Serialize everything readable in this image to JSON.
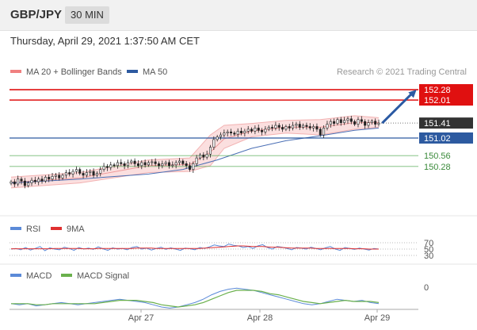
{
  "header": {
    "pair": "GBP/JPY",
    "timeframe": "30 MIN",
    "datetime": "Thursday, April 29, 2021 1:37:50 AM CET"
  },
  "credit": "Research © 2021 Trading Central",
  "chart_data": [
    {
      "type": "candlestick",
      "legend": [
        {
          "name": "MA 20 + Bollinger Bands",
          "color": "#f08080"
        },
        {
          "name": "MA 50",
          "color": "#2d5aa0"
        }
      ],
      "ylim": [
        149.2,
        152.55
      ],
      "x_ticks": [
        "Apr 27",
        "Apr 28",
        "Apr 29"
      ],
      "levels": [
        {
          "value": 152.28,
          "label": "152.28",
          "style": "resistance"
        },
        {
          "value": 152.01,
          "label": "152.01",
          "style": "resistance"
        },
        {
          "value": 151.41,
          "label": "151.41",
          "style": "last"
        },
        {
          "value": 151.02,
          "label": "151.02",
          "style": "pivot"
        },
        {
          "value": 150.56,
          "label": "150.56",
          "style": "support"
        },
        {
          "value": 150.28,
          "label": "150.28",
          "style": "support"
        }
      ],
      "close": [
        149.88,
        149.82,
        149.95,
        149.9,
        149.78,
        149.85,
        149.92,
        149.88,
        149.95,
        149.9,
        150.0,
        149.95,
        150.02,
        150.05,
        149.98,
        150.05,
        150.12,
        150.08,
        150.15,
        150.2,
        150.1,
        150.05,
        150.12,
        150.15,
        150.05,
        150.1,
        150.2,
        150.28,
        150.25,
        150.32,
        150.3,
        150.38,
        150.35,
        150.3,
        150.38,
        150.42,
        150.35,
        150.3,
        150.38,
        150.32,
        150.38,
        150.4,
        150.35,
        150.3,
        150.35,
        150.38,
        150.3,
        150.32,
        150.38,
        150.42,
        150.35,
        150.3,
        150.2,
        150.35,
        150.5,
        150.58,
        150.52,
        150.6,
        150.78,
        150.98,
        151.05,
        151.1,
        151.15,
        151.18,
        151.15,
        151.12,
        151.2,
        151.15,
        151.2,
        151.25,
        151.2,
        151.28,
        151.22,
        151.18,
        151.25,
        151.3,
        151.28,
        151.35,
        151.3,
        151.25,
        151.32,
        151.28,
        151.35,
        151.38,
        151.3,
        151.35,
        151.32,
        151.28,
        151.32,
        151.25,
        151.1,
        151.28,
        151.38,
        151.45,
        151.4,
        151.5,
        151.42,
        151.48,
        151.52,
        151.45,
        151.38,
        151.5,
        151.45,
        151.35,
        151.42,
        151.46,
        151.38,
        151.41
      ],
      "ma50": [
        [
          0,
          149.85
        ],
        [
          20,
          149.95
        ],
        [
          40,
          150.08
        ],
        [
          50,
          150.2
        ],
        [
          60,
          150.45
        ],
        [
          70,
          150.75
        ],
        [
          80,
          150.95
        ],
        [
          90,
          151.08
        ],
        [
          100,
          151.22
        ],
        [
          107,
          151.28
        ]
      ],
      "bb_upper": [
        [
          0,
          150.0
        ],
        [
          20,
          150.12
        ],
        [
          40,
          150.45
        ],
        [
          52,
          150.5
        ],
        [
          58,
          151.1
        ],
        [
          62,
          151.35
        ],
        [
          70,
          151.4
        ],
        [
          80,
          151.48
        ],
        [
          90,
          151.5
        ],
        [
          100,
          151.6
        ],
        [
          107,
          151.55
        ]
      ],
      "bb_lower": [
        [
          0,
          149.72
        ],
        [
          20,
          149.85
        ],
        [
          40,
          150.12
        ],
        [
          52,
          150.15
        ],
        [
          58,
          150.3
        ],
        [
          62,
          150.75
        ],
        [
          70,
          151.05
        ],
        [
          80,
          151.15
        ],
        [
          90,
          151.1
        ],
        [
          100,
          151.25
        ],
        [
          107,
          151.3
        ]
      ],
      "ma20": [
        [
          0,
          149.86
        ],
        [
          20,
          149.98
        ],
        [
          40,
          150.3
        ],
        [
          52,
          150.33
        ],
        [
          58,
          150.65
        ],
        [
          62,
          151.0
        ],
        [
          70,
          151.2
        ],
        [
          80,
          151.3
        ],
        [
          90,
          151.3
        ],
        [
          100,
          151.42
        ],
        [
          107,
          151.42
        ]
      ],
      "forecast_arrow": {
        "from": [
          108,
          151.41
        ],
        "to": [
          118,
          152.28
        ]
      }
    },
    {
      "type": "line",
      "legend": [
        {
          "name": "RSI",
          "color": "#5b8ad8"
        },
        {
          "name": "9MA",
          "color": "#e03030"
        }
      ],
      "levels": [
        "70",
        "50",
        "30"
      ],
      "rsi": [
        50,
        52,
        48,
        55,
        47,
        52,
        58,
        45,
        54,
        50,
        48,
        56,
        52,
        46,
        55,
        50,
        53,
        49,
        57,
        51,
        46,
        54,
        50,
        52,
        48,
        55,
        58,
        50,
        53,
        47,
        52,
        56,
        49,
        54,
        50,
        46,
        53,
        51,
        48,
        55,
        52,
        57,
        63,
        60,
        58,
        66,
        62,
        60,
        55,
        58,
        52,
        60,
        64,
        55,
        50,
        58,
        56,
        52,
        48,
        55,
        53,
        50,
        56,
        52,
        48,
        54,
        58,
        50,
        46,
        55,
        52,
        49,
        53,
        50,
        47,
        52,
        50
      ],
      "ma9": [
        51,
        51,
        51,
        51,
        51,
        51,
        51,
        51,
        51,
        52,
        52,
        52,
        52,
        52,
        52,
        51,
        51,
        51,
        52,
        52,
        52,
        52,
        52,
        52,
        52,
        52,
        53,
        53,
        53,
        53,
        52,
        52,
        52,
        52,
        52,
        52,
        52,
        52,
        52,
        52,
        53,
        54,
        55,
        56,
        57,
        58,
        59,
        60,
        60,
        59,
        58,
        58,
        58,
        57,
        56,
        56,
        55,
        54,
        53,
        53,
        53,
        53,
        53,
        52,
        52,
        52,
        52,
        52,
        52,
        52,
        52,
        51,
        51,
        51,
        50,
        50,
        50
      ]
    },
    {
      "type": "line",
      "legend": [
        {
          "name": "MACD",
          "color": "#5b8ad8"
        },
        {
          "name": "MACD Signal",
          "color": "#6ab04c"
        }
      ],
      "zero_label": "0",
      "macd": [
        -0.02,
        -0.03,
        -0.02,
        -0.04,
        -0.03,
        -0.02,
        -0.01,
        -0.02,
        -0.03,
        -0.02,
        -0.01,
        0.0,
        0.01,
        0.02,
        0.01,
        0.0,
        -0.01,
        -0.03,
        -0.05,
        -0.06,
        -0.05,
        -0.03,
        -0.01,
        0.02,
        0.06,
        0.09,
        0.11,
        0.12,
        0.11,
        0.1,
        0.08,
        0.06,
        0.04,
        0.02,
        0.0,
        -0.02,
        -0.03,
        -0.02,
        0.0,
        0.02,
        0.01,
        0.0,
        0.01,
        -0.01,
        -0.02
      ],
      "signal": [
        -0.02,
        -0.02,
        -0.02,
        -0.03,
        -0.03,
        -0.02,
        -0.02,
        -0.02,
        -0.02,
        -0.02,
        -0.02,
        -0.01,
        0.0,
        0.01,
        0.01,
        0.01,
        0.0,
        -0.01,
        -0.03,
        -0.04,
        -0.05,
        -0.04,
        -0.03,
        -0.01,
        0.02,
        0.05,
        0.08,
        0.1,
        0.1,
        0.1,
        0.09,
        0.07,
        0.06,
        0.04,
        0.02,
        0.0,
        -0.01,
        -0.02,
        -0.01,
        0.0,
        0.01,
        0.0,
        0.0,
        0.0,
        -0.01
      ]
    }
  ]
}
